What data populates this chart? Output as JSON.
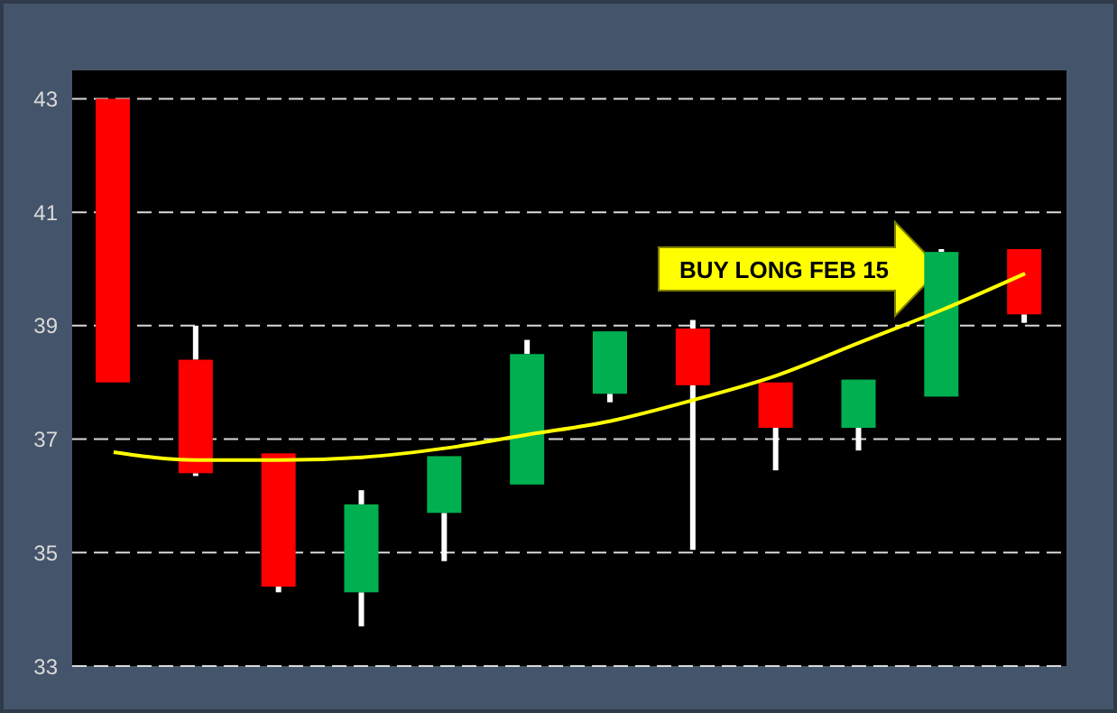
{
  "chart_data": {
    "type": "candlestick",
    "categories": [
      null,
      null,
      null,
      null,
      null,
      null,
      null,
      null,
      null,
      null,
      null,
      null
    ],
    "ohlc": [
      [
        43,
        43,
        38,
        38
      ],
      [
        38.4,
        39.0,
        36.35,
        36.4
      ],
      [
        36.75,
        36.75,
        34.3,
        34.4
      ],
      [
        34.3,
        36.1,
        33.7,
        35.85
      ],
      [
        35.7,
        36.7,
        34.85,
        36.7
      ],
      [
        36.2,
        38.75,
        36.2,
        38.5
      ],
      [
        37.8,
        38.9,
        37.65,
        38.9
      ],
      [
        38.95,
        39.1,
        35.05,
        37.95
      ],
      [
        38.0,
        38.0,
        36.45,
        37.2
      ],
      [
        37.2,
        38.05,
        36.8,
        38.05
      ],
      [
        37.75,
        40.35,
        37.75,
        40.3
      ],
      [
        40.35,
        40.35,
        39.05,
        39.2
      ]
    ],
    "colors": [
      "#ff0000",
      "#ff0000",
      "#ff0000",
      "#00b050",
      "#00b050",
      "#00b050",
      "#00b050",
      "#ff0000",
      "#ff0000",
      "#00b050",
      "#00b050",
      "#ff0000"
    ],
    "series": [
      {
        "type": "line",
        "color": "#ffff00",
        "values": [
          36.77,
          36.63,
          36.63,
          36.68,
          36.84,
          37.08,
          37.32,
          37.69,
          38.12,
          38.7,
          39.28,
          39.92
        ]
      }
    ],
    "ylim": [
      33,
      43.5
    ],
    "yticks": [
      33,
      35,
      37,
      39,
      41,
      43
    ],
    "grid": "y",
    "tick_labels": "y",
    "annotations": [
      "BUY LONG FEB 15"
    ]
  }
}
